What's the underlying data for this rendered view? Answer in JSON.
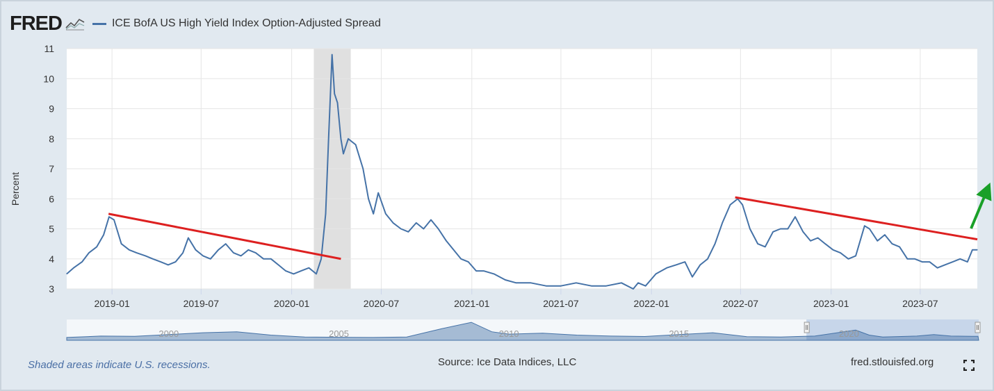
{
  "header": {
    "logo_text": "FRED",
    "series_name": "ICE BofA US High Yield Index Option-Adjusted Spread"
  },
  "footer": {
    "note": "Shaded areas indicate U.S. recessions.",
    "source": "Source: Ice Data Indices, LLC",
    "site": "fred.stlouisfed.org"
  },
  "chart_data": {
    "type": "line",
    "title": "",
    "xlabel": "",
    "ylabel": "Percent",
    "ylim": [
      3,
      11
    ],
    "yticks": [
      3,
      4,
      5,
      6,
      7,
      8,
      9,
      10,
      11
    ],
    "xticks": [
      "2019-01",
      "2019-07",
      "2020-01",
      "2020-07",
      "2021-01",
      "2021-07",
      "2022-01",
      "2022-07",
      "2023-01",
      "2023-07"
    ],
    "xlim": [
      "2018-10-01",
      "2023-10-25"
    ],
    "grid": true,
    "legend": "top-left",
    "series": [
      {
        "name": "ICE BofA US High Yield Index Option-Adjusted Spread",
        "color": "#4572a7",
        "x": [
          "2018-10-01",
          "2018-10-15",
          "2018-11-01",
          "2018-11-15",
          "2018-12-01",
          "2018-12-15",
          "2018-12-26",
          "2019-01-05",
          "2019-01-20",
          "2019-02-05",
          "2019-02-20",
          "2019-03-10",
          "2019-03-25",
          "2019-04-10",
          "2019-04-25",
          "2019-05-10",
          "2019-05-25",
          "2019-06-05",
          "2019-06-20",
          "2019-07-05",
          "2019-07-20",
          "2019-08-05",
          "2019-08-20",
          "2019-09-05",
          "2019-09-20",
          "2019-10-05",
          "2019-10-20",
          "2019-11-05",
          "2019-11-20",
          "2019-12-05",
          "2019-12-20",
          "2020-01-05",
          "2020-01-20",
          "2020-02-05",
          "2020-02-20",
          "2020-03-01",
          "2020-03-10",
          "2020-03-16",
          "2020-03-23",
          "2020-03-28",
          "2020-04-03",
          "2020-04-10",
          "2020-04-15",
          "2020-04-25",
          "2020-05-10",
          "2020-05-25",
          "2020-06-05",
          "2020-06-15",
          "2020-06-25",
          "2020-07-10",
          "2020-07-25",
          "2020-08-10",
          "2020-08-25",
          "2020-09-10",
          "2020-09-25",
          "2020-10-10",
          "2020-10-25",
          "2020-11-10",
          "2020-11-25",
          "2020-12-10",
          "2020-12-25",
          "2021-01-10",
          "2021-01-25",
          "2021-02-15",
          "2021-03-10",
          "2021-04-01",
          "2021-05-01",
          "2021-06-01",
          "2021-07-01",
          "2021-08-01",
          "2021-09-01",
          "2021-10-01",
          "2021-11-01",
          "2021-11-25",
          "2021-12-05",
          "2021-12-20",
          "2022-01-10",
          "2022-02-01",
          "2022-02-20",
          "2022-03-10",
          "2022-03-25",
          "2022-04-10",
          "2022-04-25",
          "2022-05-10",
          "2022-05-25",
          "2022-06-10",
          "2022-06-25",
          "2022-07-05",
          "2022-07-20",
          "2022-08-05",
          "2022-08-20",
          "2022-09-05",
          "2022-09-20",
          "2022-10-05",
          "2022-10-20",
          "2022-11-05",
          "2022-11-20",
          "2022-12-05",
          "2022-12-20",
          "2023-01-05",
          "2023-01-20",
          "2023-02-05",
          "2023-02-20",
          "2023-03-10",
          "2023-03-20",
          "2023-04-05",
          "2023-04-20",
          "2023-05-05",
          "2023-05-20",
          "2023-06-05",
          "2023-06-20",
          "2023-07-05",
          "2023-07-20",
          "2023-08-05",
          "2023-08-20",
          "2023-09-05",
          "2023-09-20",
          "2023-10-05",
          "2023-10-15",
          "2023-10-25"
        ],
        "values": [
          3.5,
          3.7,
          3.9,
          4.2,
          4.4,
          4.8,
          5.4,
          5.3,
          4.5,
          4.3,
          4.2,
          4.1,
          4.0,
          3.9,
          3.8,
          3.9,
          4.2,
          4.7,
          4.3,
          4.1,
          4.0,
          4.3,
          4.5,
          4.2,
          4.1,
          4.3,
          4.2,
          4.0,
          4.0,
          3.8,
          3.6,
          3.5,
          3.6,
          3.7,
          3.5,
          4.0,
          5.5,
          8.0,
          10.8,
          9.5,
          9.2,
          8.0,
          7.5,
          8.0,
          7.8,
          7.0,
          6.0,
          5.5,
          6.2,
          5.5,
          5.2,
          5.0,
          4.9,
          5.2,
          5.0,
          5.3,
          5.0,
          4.6,
          4.3,
          4.0,
          3.9,
          3.6,
          3.6,
          3.5,
          3.3,
          3.2,
          3.2,
          3.1,
          3.1,
          3.2,
          3.1,
          3.1,
          3.2,
          3.0,
          3.2,
          3.1,
          3.5,
          3.7,
          3.8,
          3.9,
          3.4,
          3.8,
          4.0,
          4.5,
          5.2,
          5.8,
          6.0,
          5.8,
          5.0,
          4.5,
          4.4,
          4.9,
          5.0,
          5.0,
          5.4,
          4.9,
          4.6,
          4.7,
          4.5,
          4.3,
          4.2,
          4.0,
          4.1,
          5.1,
          5.0,
          4.6,
          4.8,
          4.5,
          4.4,
          4.0,
          4.0,
          3.9,
          3.9,
          3.7,
          3.8,
          3.9,
          4.0,
          3.9,
          4.3,
          4.3
        ]
      }
    ],
    "annotations": [
      {
        "type": "trendline",
        "color": "#dd2020",
        "from": [
          "2018-12-25",
          5.5
        ],
        "to": [
          "2020-04-10",
          4.0
        ]
      },
      {
        "type": "trendline",
        "color": "#dd2020",
        "from": [
          "2022-06-20",
          6.05
        ],
        "to": [
          "2023-10-25",
          4.65
        ]
      },
      {
        "type": "arrow",
        "color": "#1aa028",
        "direction": "up-right"
      }
    ],
    "recessions": [
      [
        "2020-02-15",
        "2020-04-30"
      ]
    ],
    "navigator": {
      "xticks": [
        "2000",
        "2005",
        "2010",
        "2015",
        "2020"
      ],
      "window": [
        "2018-10-01",
        "2023-10-25"
      ]
    }
  }
}
